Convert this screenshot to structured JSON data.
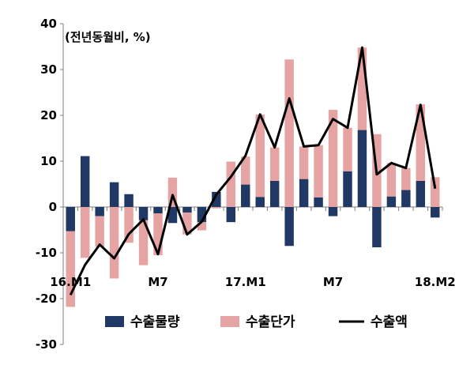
{
  "chart_data": {
    "type": "bar",
    "unit_label": "(전년동월비, %)",
    "ylim": [
      -30,
      40
    ],
    "yticks": [
      "40",
      "30",
      "20",
      "10",
      "0",
      "-10",
      "-20",
      "-30"
    ],
    "x_tick_labels": [
      "16.M1",
      "M7",
      "17.M1",
      "M7",
      "18.M2"
    ],
    "categories": [
      "16.M1",
      "16.M2",
      "16.M3",
      "16.M4",
      "16.M5",
      "16.M6",
      "16.M7",
      "16.M8",
      "16.M9",
      "16.M10",
      "16.M11",
      "16.M12",
      "17.M1",
      "17.M2",
      "17.M3",
      "17.M4",
      "17.M5",
      "17.M6",
      "17.M7",
      "17.M8",
      "17.M9",
      "17.M10",
      "17.M11",
      "17.M12",
      "18.M1",
      "18.M2"
    ],
    "stacked": true,
    "grid": false,
    "legend_position": "bottom",
    "series": [
      {
        "name": "수출물량",
        "kind": "bar",
        "color": "#1f3864",
        "values": [
          -5.3,
          11.1,
          -2.0,
          5.4,
          2.8,
          -2.9,
          -1.4,
          -3.5,
          -1.2,
          -3.3,
          3.3,
          -3.3,
          4.9,
          2.2,
          5.7,
          -8.5,
          6.1,
          2.1,
          -2.0,
          7.8,
          16.8,
          -8.8,
          2.3,
          3.7,
          5.7,
          -2.3
        ]
      },
      {
        "name": "수출단가",
        "kind": "bar",
        "color": "#e6a3a3",
        "values": [
          -16.5,
          -11.1,
          -6.7,
          -15.6,
          -7.8,
          -9.8,
          -9.1,
          6.4,
          -4.8,
          -1.8,
          -0.3,
          9.9,
          6.1,
          18.0,
          7.3,
          32.2,
          7.1,
          11.4,
          21.2,
          9.5,
          18.0,
          15.9,
          7.3,
          4.8,
          16.7,
          6.5
        ]
      },
      {
        "name": "수출액",
        "kind": "line",
        "color": "#000000",
        "values": [
          -19.2,
          -12.6,
          -8.2,
          -11.2,
          -5.9,
          -2.7,
          -10.3,
          2.6,
          -6.0,
          -3.2,
          2.7,
          6.6,
          11.2,
          20.2,
          13.0,
          23.7,
          13.2,
          13.5,
          19.2,
          17.3,
          34.8,
          7.1,
          9.6,
          8.5,
          22.3,
          4.0
        ]
      }
    ]
  }
}
